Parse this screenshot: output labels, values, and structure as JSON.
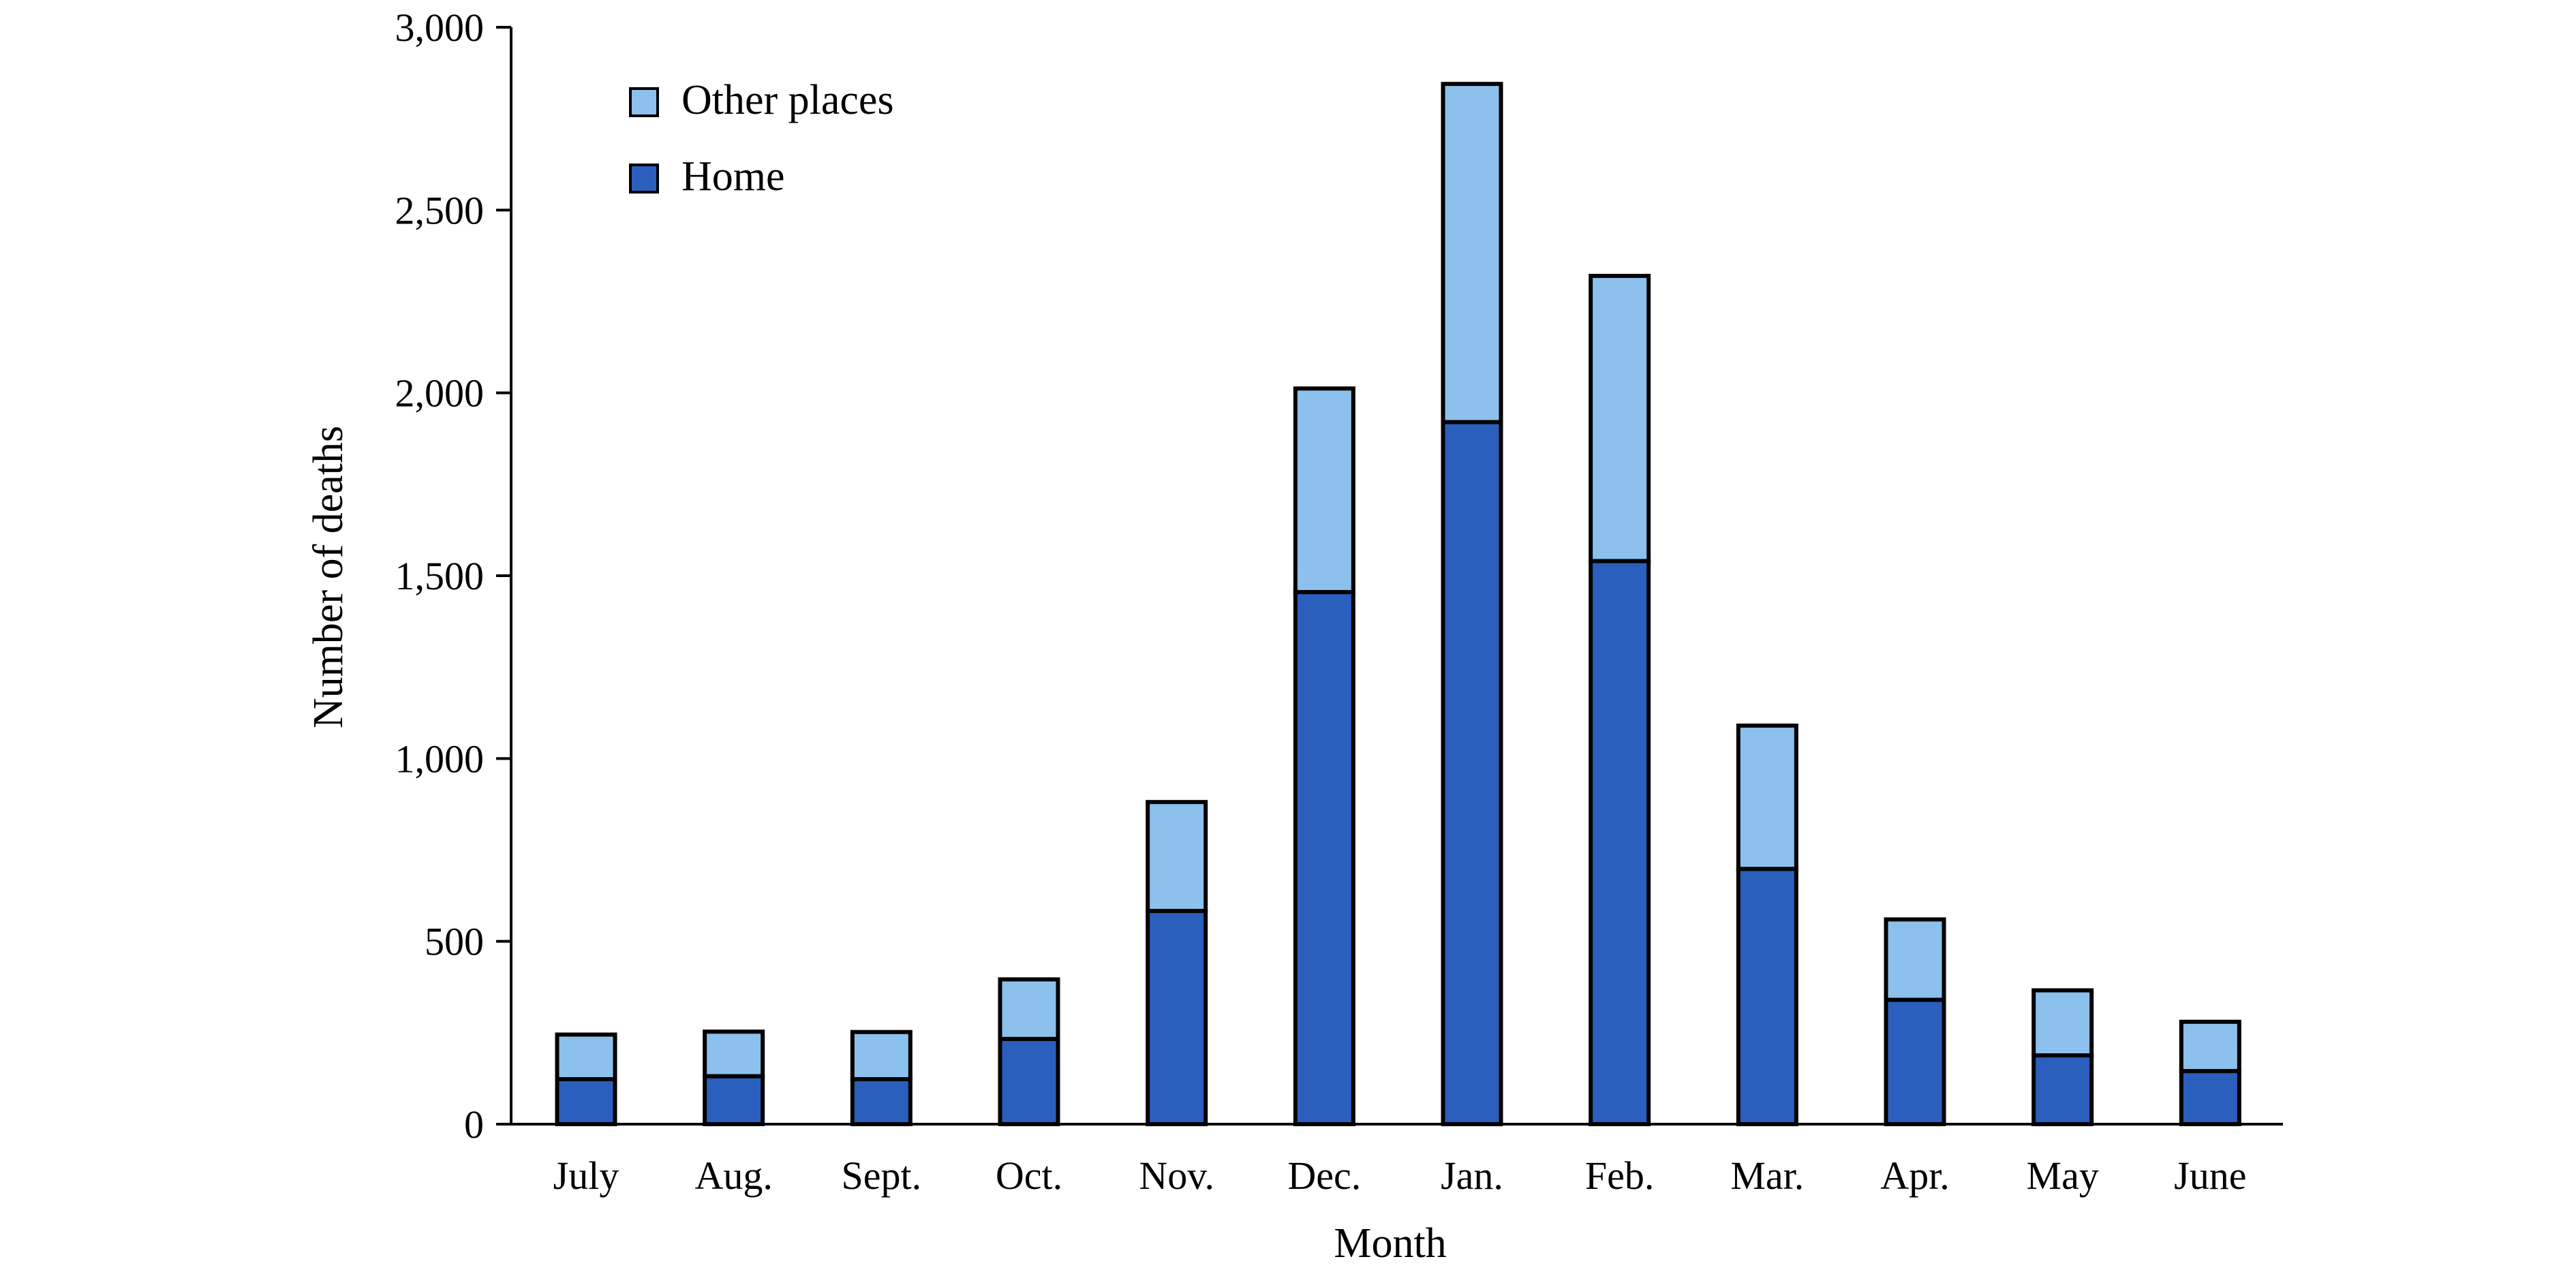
{
  "chart_data": {
    "type": "bar",
    "stacked": true,
    "xlabel": "Month",
    "ylabel": "Number of deaths",
    "ylim": [
      0,
      3000
    ],
    "yticks": [
      0,
      500,
      1000,
      1500,
      2000,
      2500,
      3000
    ],
    "ytick_labels": [
      "0",
      "500",
      "1,000",
      "1,500",
      "2,000",
      "2,500",
      "3,000"
    ],
    "categories": [
      "July",
      "Aug.",
      "Sept.",
      "Oct.",
      "Nov.",
      "Dec.",
      "Jan.",
      "Feb.",
      "Mar.",
      "Apr.",
      "May",
      "June"
    ],
    "series": [
      {
        "name": "Home",
        "color": "#2b5fbe",
        "values": [
          123,
          131,
          123,
          233,
          583,
          1455,
          1920,
          1540,
          698,
          340,
          188,
          145
        ]
      },
      {
        "name": "Other places",
        "color": "#8bc1ec",
        "values": [
          122,
          122,
          129,
          163,
          298,
          557,
          925,
          780,
          392,
          220,
          178,
          135
        ]
      }
    ],
    "legend": {
      "position": "top-left",
      "order": [
        "Other places",
        "Home"
      ]
    },
    "grid": false
  }
}
